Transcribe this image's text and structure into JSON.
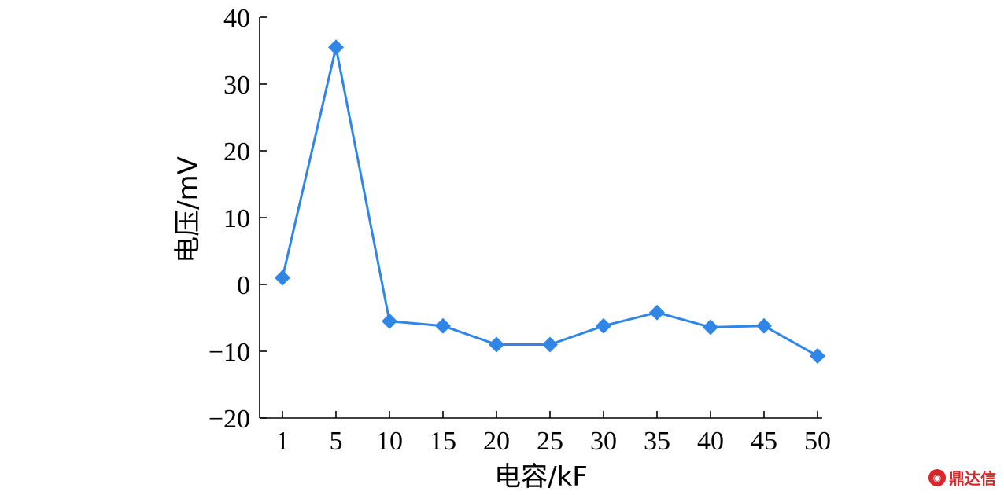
{
  "chart_data": {
    "type": "line",
    "categories": [
      "1",
      "5",
      "10",
      "15",
      "20",
      "25",
      "30",
      "35",
      "40",
      "45",
      "50"
    ],
    "series": [
      {
        "values": [
          1,
          35.5,
          -5.5,
          -6.2,
          -9,
          -9,
          -6.2,
          -4.2,
          -6.4,
          -6.2,
          -10.7
        ]
      }
    ],
    "xlabel": "电容/kF",
    "ylabel": "电压/mV",
    "ylim": [
      -20,
      40
    ],
    "yticks": [
      -20,
      -10,
      0,
      10,
      20,
      30,
      40
    ],
    "ytick_labels": [
      "−20",
      "−10",
      "0",
      "10",
      "20",
      "30",
      "40"
    ],
    "grid": false,
    "marker": "diamond",
    "color": "#2f86e6"
  },
  "watermark": {
    "text": "鼎达信",
    "logo_color": "#d9262c"
  }
}
